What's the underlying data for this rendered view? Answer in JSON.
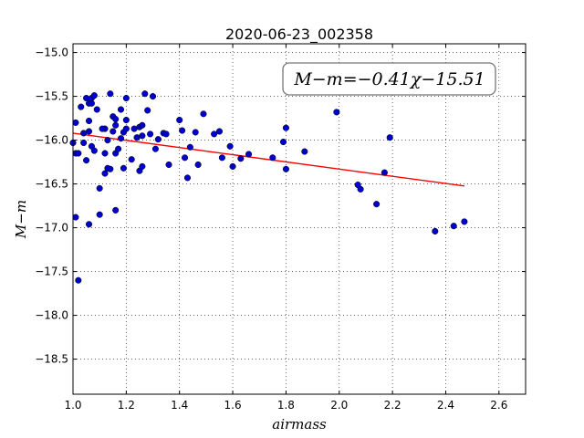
{
  "chart_data": {
    "type": "scatter",
    "title": "2020-06-23_002358",
    "xlabel": "airmass",
    "ylabel": "M−m",
    "xlim": [
      1.0,
      2.7
    ],
    "ylim": [
      -18.9,
      -14.9
    ],
    "y_inverted": true,
    "grid": true,
    "x_ticks": [
      "1.0",
      "1.2",
      "1.4",
      "1.6",
      "1.8",
      "2.0",
      "2.2",
      "2.4",
      "2.6"
    ],
    "y_ticks": [
      "−15.0",
      "−15.5",
      "−16.0",
      "−16.5",
      "−17.0",
      "−17.5",
      "−18.0",
      "−18.5"
    ],
    "annotation": "M−m=−0.41χ−15.51",
    "marker_color": "#0000cc",
    "fit_color": "#ff0000",
    "fit_line": {
      "slope": -0.41,
      "intercept": -15.51,
      "x_range": [
        1.0,
        2.47
      ]
    },
    "points": {
      "x": [
        1.01,
        1.01,
        1.02,
        1.03,
        1.04,
        1.05,
        1.05,
        1.06,
        1.06,
        1.06,
        1.07,
        1.07,
        1.07,
        1.08,
        1.08,
        1.09,
        1.1,
        1.12,
        1.12,
        1.13,
        1.13,
        1.14,
        1.14,
        1.15,
        1.15,
        1.16,
        1.16,
        1.16,
        1.17,
        1.18,
        1.18,
        1.19,
        1.2,
        1.2,
        1.2,
        1.22,
        1.23,
        1.24,
        1.25,
        1.25,
        1.26,
        1.26,
        1.26,
        1.27,
        1.28,
        1.29,
        1.3,
        1.31,
        1.32,
        1.34,
        1.35,
        1.36,
        1.4,
        1.41,
        1.42,
        1.43,
        1.44,
        1.46,
        1.47,
        1.49,
        1.53,
        1.55,
        1.56,
        1.59,
        1.6,
        1.63,
        1.66,
        1.75,
        1.79,
        1.8,
        1.8,
        1.87,
        1.99,
        2.07,
        2.08,
        2.14,
        2.17,
        2.19,
        2.36,
        2.43,
        2.47,
        1.0,
        1.01,
        1.04,
        1.06,
        1.1,
        1.11,
        1.12,
        1.16,
        1.19,
        1.02
      ],
      "y": [
        -15.8,
        -16.15,
        -17.6,
        -15.62,
        -15.92,
        -16.23,
        -15.52,
        -15.58,
        -15.78,
        -15.9,
        -15.58,
        -16.07,
        -15.52,
        -15.49,
        -16.12,
        -15.65,
        -16.85,
        -16.38,
        -15.87,
        -16.0,
        -16.32,
        -16.33,
        -15.47,
        -15.73,
        -15.9,
        -15.76,
        -15.83,
        -16.15,
        -16.1,
        -15.98,
        -15.65,
        -16.32,
        -15.52,
        -15.77,
        -15.87,
        -16.22,
        -15.87,
        -15.97,
        -15.85,
        -16.35,
        -16.3,
        -15.83,
        -15.95,
        -15.47,
        -15.66,
        -15.93,
        -15.5,
        -16.1,
        -15.99,
        -15.92,
        -15.93,
        -16.28,
        -15.77,
        -15.89,
        -16.2,
        -16.43,
        -16.08,
        -15.91,
        -16.28,
        -15.7,
        -15.93,
        -15.9,
        -16.2,
        -16.07,
        -16.3,
        -16.21,
        -16.16,
        -16.2,
        -16.02,
        -16.33,
        -15.86,
        -16.13,
        -15.68,
        -16.51,
        -16.56,
        -16.73,
        -16.37,
        -15.97,
        -17.04,
        -16.98,
        -16.93,
        -16.03,
        -16.88,
        -16.03,
        -16.96,
        -16.55,
        -15.87,
        -16.15,
        -16.8,
        -15.91,
        -16.15
      ]
    }
  }
}
